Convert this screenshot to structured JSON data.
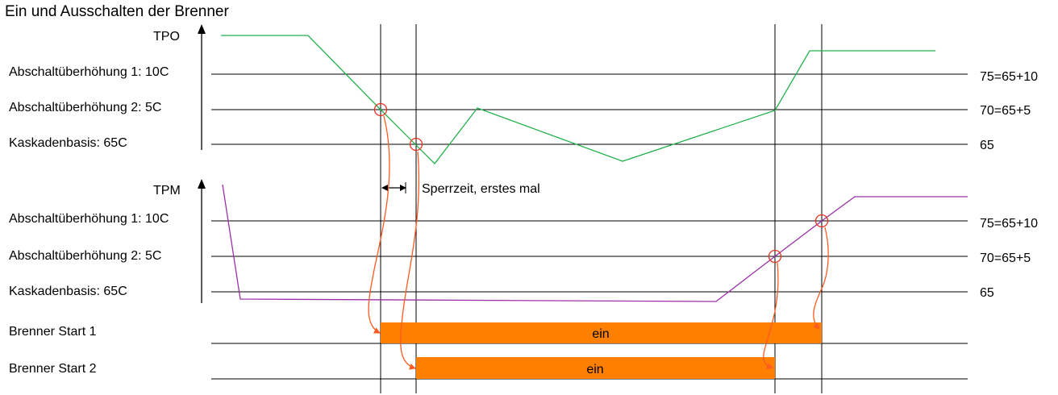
{
  "title": "Ein und Ausschalten der Brenner",
  "tpo": {
    "axis_label": "TPO",
    "levels": [
      {
        "label": "Abschaltüberhöhung 1: 10C",
        "value_label": "75=65+10"
      },
      {
        "label": "Abschaltüberhöhung 2: 5C",
        "value_label": "70=65+5"
      },
      {
        "label": "Kaskadenbasis: 65C",
        "value_label": "65"
      }
    ]
  },
  "tpm": {
    "axis_label": "TPM",
    "levels": [
      {
        "label": "Abschaltüberhöhung 1: 10C",
        "value_label": "75=65+10"
      },
      {
        "label": "Abschaltüberhöhung 2: 5C",
        "value_label": "70=65+5"
      },
      {
        "label": "Kaskadenbasis: 65C",
        "value_label": "65"
      }
    ]
  },
  "sperrzeit_label": "Sperrzeit, erstes mal",
  "burners": [
    {
      "label": "Brenner Start 1",
      "state_label": "ein"
    },
    {
      "label": "Brenner Start 2",
      "state_label": "ein"
    }
  ],
  "colors": {
    "tpo_line": "#22b14c",
    "tpm_line": "#9b30a8",
    "marker": "#e8321e",
    "arrow": "#ff5a1f",
    "bar": "#ff7f00",
    "grid": "#000000"
  }
}
